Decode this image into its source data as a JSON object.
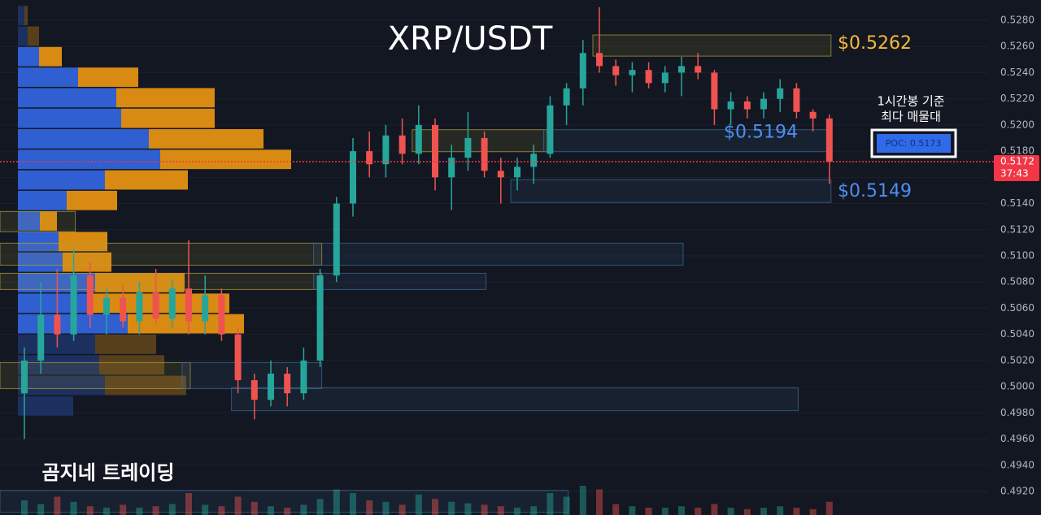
{
  "chart_data": {
    "type": "candlestick",
    "title": "XRP/USDT",
    "watermark": "곰지네 트레이딩",
    "note": [
      "1시간봉 기준",
      "최다 매물대"
    ],
    "poc_label": "POC: 0.5173",
    "last_price": 0.5172,
    "countdown": "37:43",
    "up_color": "#26a69a",
    "down_color": "#ef5350",
    "ylim": [
      0.4902,
      0.52955
    ],
    "yticks": [
      {
        "value": 0.492,
        "label": "0.4920"
      },
      {
        "value": 0.494,
        "label": "0.4940"
      },
      {
        "value": 0.496,
        "label": "0.4960"
      },
      {
        "value": 0.498,
        "label": "0.4980"
      },
      {
        "value": 0.5,
        "label": "0.5000"
      },
      {
        "value": 0.502,
        "label": "0.5020"
      },
      {
        "value": 0.504,
        "label": "0.5040"
      },
      {
        "value": 0.506,
        "label": "0.5060"
      },
      {
        "value": 0.508,
        "label": "0.5080"
      },
      {
        "value": 0.51,
        "label": "0.5100"
      },
      {
        "value": 0.512,
        "label": "0.5120"
      },
      {
        "value": 0.514,
        "label": "0.5140"
      },
      {
        "value": 0.516,
        "label": "0.5160"
      },
      {
        "value": 0.518,
        "label": "0.5180"
      },
      {
        "value": 0.52,
        "label": "0.5200"
      },
      {
        "value": 0.522,
        "label": "0.5220"
      },
      {
        "value": 0.524,
        "label": "0.5240"
      },
      {
        "value": 0.526,
        "label": "0.5260"
      },
      {
        "value": 0.528,
        "label": "0.5280"
      }
    ],
    "grid": true,
    "open": [
      0.4995,
      0.502,
      0.5055,
      0.504,
      0.5085,
      0.5055,
      0.5068,
      0.505,
      0.5072,
      0.5052,
      0.5075,
      0.505,
      0.507,
      0.504,
      0.5005,
      0.499,
      0.501,
      0.4995,
      0.502,
      0.5085,
      0.514,
      0.518,
      0.517,
      0.5192,
      0.5178,
      0.52,
      0.516,
      0.5175,
      0.519,
      0.5165,
      0.516,
      0.5168,
      0.5178,
      0.5215,
      0.5228,
      0.5255,
      0.5245,
      0.5238,
      0.5242,
      0.5232,
      0.524,
      0.5245,
      0.524,
      0.5212,
      0.5218,
      0.5212,
      0.522,
      0.5228,
      0.521,
      0.5205
    ],
    "high": [
      0.503,
      0.508,
      0.509,
      0.5105,
      0.5095,
      0.5075,
      0.5078,
      0.508,
      0.509,
      0.5082,
      0.5112,
      0.5085,
      0.5075,
      0.5045,
      0.501,
      0.502,
      0.5015,
      0.503,
      0.509,
      0.5145,
      0.519,
      0.5195,
      0.52,
      0.5205,
      0.5215,
      0.5205,
      0.5185,
      0.521,
      0.5195,
      0.5175,
      0.5175,
      0.5185,
      0.5222,
      0.5232,
      0.5265,
      0.529,
      0.525,
      0.5248,
      0.5248,
      0.5245,
      0.5252,
      0.5255,
      0.5242,
      0.5225,
      0.5222,
      0.5225,
      0.5235,
      0.5232,
      0.5212,
      0.5208
    ],
    "low": [
      0.496,
      0.501,
      0.503,
      0.5035,
      0.5045,
      0.504,
      0.5045,
      0.504,
      0.5048,
      0.5045,
      0.504,
      0.504,
      0.5035,
      0.4995,
      0.4975,
      0.4985,
      0.4985,
      0.499,
      0.5015,
      0.508,
      0.513,
      0.516,
      0.516,
      0.517,
      0.517,
      0.515,
      0.5135,
      0.5165,
      0.516,
      0.514,
      0.515,
      0.5155,
      0.5175,
      0.52,
      0.5215,
      0.524,
      0.523,
      0.5225,
      0.5228,
      0.5225,
      0.5222,
      0.5235,
      0.52,
      0.52,
      0.5205,
      0.5205,
      0.521,
      0.5205,
      0.5195,
      0.5155
    ],
    "close": [
      0.502,
      0.5055,
      0.504,
      0.5085,
      0.5055,
      0.5068,
      0.505,
      0.5072,
      0.5052,
      0.5075,
      0.505,
      0.507,
      0.504,
      0.5005,
      0.499,
      0.501,
      0.4995,
      0.502,
      0.5085,
      0.514,
      0.518,
      0.517,
      0.5192,
      0.5178,
      0.52,
      0.516,
      0.5175,
      0.519,
      0.5165,
      0.516,
      0.5168,
      0.5178,
      0.5215,
      0.5228,
      0.5255,
      0.5245,
      0.5238,
      0.5242,
      0.5232,
      0.524,
      0.5245,
      0.524,
      0.5212,
      0.5218,
      0.5212,
      0.522,
      0.5228,
      0.521,
      0.5205,
      0.5172
    ],
    "volume": [
      20,
      15,
      25,
      18,
      12,
      10,
      14,
      10,
      12,
      15,
      30,
      14,
      12,
      25,
      18,
      12,
      10,
      14,
      22,
      35,
      30,
      20,
      18,
      14,
      28,
      22,
      18,
      16,
      14,
      12,
      10,
      12,
      30,
      25,
      40,
      35,
      15,
      12,
      10,
      10,
      12,
      10,
      15,
      10,
      8,
      10,
      12,
      10,
      8,
      18
    ],
    "volume_profile": {
      "bins": [
        0.5291,
        0.52753,
        0.52596,
        0.52439,
        0.52282,
        0.52125,
        0.51968,
        0.51811,
        0.51654,
        0.51497,
        0.5134,
        0.51183,
        0.51026,
        0.50869,
        0.50712,
        0.50555,
        0.50398,
        0.50241,
        0.50084,
        0.49927,
        0.4977
      ],
      "buy": [
        8,
        12,
        26,
        74,
        121,
        127,
        161,
        175,
        107,
        60,
        27,
        50,
        55,
        95,
        90,
        135,
        95,
        100,
        107,
        68
      ],
      "sell": [
        4,
        14,
        28,
        74,
        121,
        115,
        141,
        161,
        102,
        62,
        21,
        60,
        60,
        110,
        170,
        143,
        75,
        80,
        100,
        0
      ],
      "buy_color": "#2f5fd0",
      "sell_color": "#d98a12",
      "value_area": [
        2,
        15
      ]
    },
    "zones": [
      {
        "low": 0.52526,
        "high": 0.52688,
        "start": 35,
        "end": 49,
        "color": "#b8a33a"
      },
      {
        "low": 0.51796,
        "high": 0.51964,
        "start": 24,
        "end": 32,
        "color": "#b8a33a"
      },
      {
        "low": 0.51796,
        "high": 0.51964,
        "start": 32,
        "end": 49,
        "color": "#3a6f9a"
      },
      {
        "low": 0.51408,
        "high": 0.51582,
        "start": 30,
        "end": 49,
        "color": "#3a6f9a"
      },
      {
        "low": 0.51184,
        "high": 0.51339,
        "start": 0,
        "end": 3,
        "color": "#b8a33a"
      },
      {
        "low": 0.50929,
        "high": 0.51097,
        "start": 0,
        "end": 18,
        "color": "#b8a33a"
      },
      {
        "low": 0.50929,
        "high": 0.51097,
        "start": 18,
        "end": 40,
        "color": "#3a6f9a"
      },
      {
        "low": 0.50743,
        "high": 0.50867,
        "start": 0,
        "end": 18,
        "color": "#b8a33a"
      },
      {
        "low": 0.50743,
        "high": 0.50867,
        "start": 18,
        "end": 28,
        "color": "#3a6f9a"
      },
      {
        "low": 0.49985,
        "high": 0.50184,
        "start": 0,
        "end": 10,
        "color": "#b8a33a"
      },
      {
        "low": 0.49985,
        "high": 0.50184,
        "start": 10,
        "end": 18,
        "color": "#3a6f9a"
      },
      {
        "low": 0.49817,
        "high": 0.49991,
        "start": 13,
        "end": 47,
        "color": "#3a6f9a"
      },
      {
        "low": 0.4904,
        "high": 0.49208,
        "start": 0,
        "end": 33,
        "color": "#3a6f9a"
      }
    ],
    "price_labels": [
      {
        "label": "$0.5262",
        "value": 0.5262,
        "color": "#f5b93a"
      },
      {
        "label": "$0.5194",
        "value": 0.5194,
        "color": "#4d8ff0"
      },
      {
        "label": "$0.5149",
        "value": 0.5149,
        "color": "#4d8ff0"
      }
    ]
  }
}
